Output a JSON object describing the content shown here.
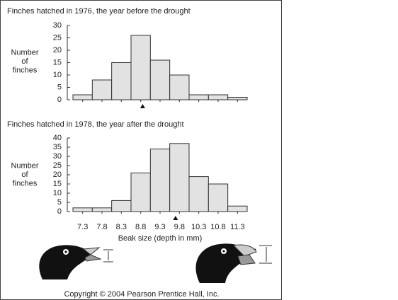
{
  "chart_data": [
    {
      "type": "histogram",
      "title": "Finches hatched in 1976, the year before the drought",
      "ylabel": [
        "Number",
        "of",
        "finches"
      ],
      "bins": [
        7.05,
        7.55,
        8.05,
        8.55,
        9.05,
        9.55,
        10.05,
        10.55,
        11.05,
        11.55
      ],
      "values": [
        2,
        8,
        15,
        26,
        16,
        10,
        2,
        2,
        1
      ],
      "color": "#e2e2e2",
      "xlim": [
        7.05,
        11.55
      ],
      "xticks": [
        7.3,
        7.8,
        8.3,
        8.8,
        9.3,
        9.8,
        10.3,
        10.8,
        11.3
      ],
      "xtick_labels": false,
      "ylim": [
        0,
        30
      ],
      "yticks": [
        0,
        5,
        10,
        15,
        20,
        25,
        30
      ],
      "mean": 8.85
    },
    {
      "type": "histogram",
      "title": "Finches hatched in 1978, the year after the drought",
      "ylabel": [
        "Number",
        "of",
        "finches"
      ],
      "xlabel": "Beak size (depth in mm)",
      "bins": [
        7.05,
        7.55,
        8.05,
        8.55,
        9.05,
        9.55,
        10.05,
        10.55,
        11.05,
        11.55
      ],
      "values": [
        2,
        2,
        6,
        21,
        34,
        37,
        19,
        15,
        3
      ],
      "color": "#e2e2e2",
      "xlim": [
        7.05,
        11.55
      ],
      "xticks": [
        7.3,
        7.8,
        8.3,
        8.8,
        9.3,
        9.8,
        10.3,
        10.8,
        11.3
      ],
      "xtick_labels": true,
      "ylim": [
        0,
        40
      ],
      "yticks": [
        0,
        5,
        10,
        15,
        20,
        25,
        30,
        35,
        40
      ],
      "mean": 9.7
    }
  ],
  "copyright": "Copyright © 2004 Pearson Prentice Hall, Inc."
}
